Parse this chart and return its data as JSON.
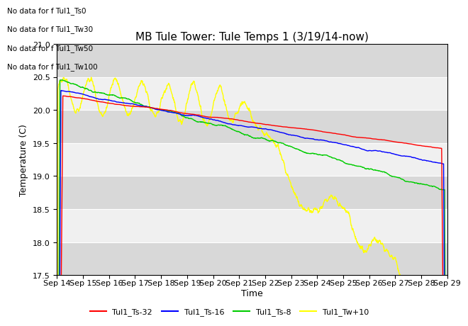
{
  "title": "MB Tule Tower: Tule Temps 1 (3/19/14-now)",
  "xlabel": "Time",
  "ylabel": "Temperature (C)",
  "ylim": [
    17.5,
    21.0
  ],
  "xlim": [
    0,
    15
  ],
  "x_tick_labels": [
    "Sep 14",
    "Sep 15",
    "Sep 16",
    "Sep 17",
    "Sep 18",
    "Sep 19",
    "Sep 20",
    "Sep 21",
    "Sep 22",
    "Sep 23",
    "Sep 24",
    "Sep 25",
    "Sep 26",
    "Sep 27",
    "Sep 28",
    "Sep 29"
  ],
  "no_data_texts": [
    "No data for f Tul1_Ts0",
    "No data for f Tul1_Tw30",
    "No data for f Tul1_Tw50",
    "No data for f Tul1_Tw100"
  ],
  "line_colors": {
    "Ts32": "#ff0000",
    "Ts16": "#0000ff",
    "Ts8": "#00cc00",
    "Tw10": "#ffff00"
  },
  "bg_color": "#ffffff",
  "band_light": "#f0f0f0",
  "band_dark": "#d8d8d8",
  "title_fontsize": 11,
  "axis_fontsize": 9,
  "tick_fontsize": 8,
  "legend_labels": [
    "Tul1_Ts-32",
    "Tul1_Ts-16",
    "Tul1_Ts-8",
    "Tul1_Tw+10"
  ]
}
